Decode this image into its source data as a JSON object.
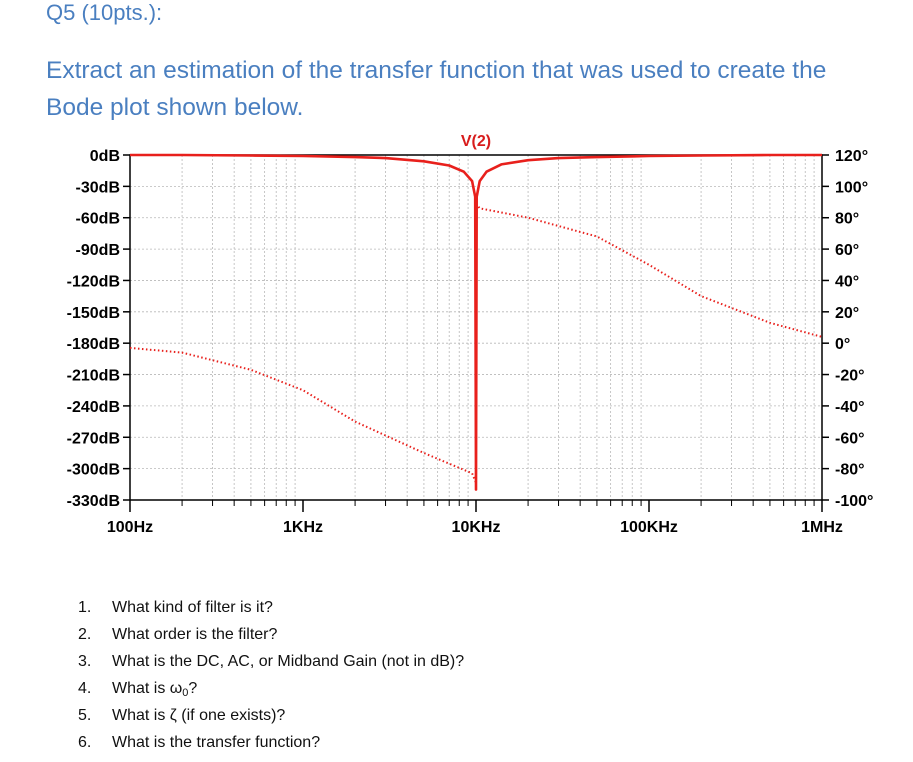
{
  "heading": "Q5 (10pts.):",
  "intro": "Extract an estimation of the transfer function that was used to create the Bode plot shown below.",
  "chart_data": {
    "type": "line",
    "title": "V(2)",
    "x_scale": "log",
    "x_ticks": [
      {
        "value": 100,
        "label": "100Hz"
      },
      {
        "value": 1000,
        "label": "1KHz"
      },
      {
        "value": 10000,
        "label": "10KHz"
      },
      {
        "value": 100000,
        "label": "100KHz"
      },
      {
        "value": 1000000,
        "label": "1MHz"
      }
    ],
    "xlim": [
      100,
      1000000
    ],
    "ylim_left": [
      -330,
      0
    ],
    "yticks_left": [
      "0dB",
      "-30dB",
      "-60dB",
      "-90dB",
      "-120dB",
      "-150dB",
      "-180dB",
      "-210dB",
      "-240dB",
      "-270dB",
      "-300dB",
      "-330dB"
    ],
    "ylim_right": [
      -100,
      120
    ],
    "yticks_right": [
      "120°",
      "100°",
      "80°",
      "60°",
      "40°",
      "20°",
      "0°",
      "-20°",
      "-40°",
      "-60°",
      "-80°",
      "-100°"
    ],
    "grid": true,
    "series": [
      {
        "name": "V(2)",
        "style": "solid",
        "axis": "left",
        "color": "#e8201c",
        "x": [
          100,
          200,
          500,
          1000,
          2000,
          3000,
          5000,
          7000,
          8500,
          9500,
          9900,
          10000,
          10100,
          10500,
          11500,
          14000,
          20000,
          30000,
          50000,
          100000,
          200000,
          500000,
          1000000
        ],
        "y": [
          0,
          0,
          -0.5,
          -1,
          -2,
          -3,
          -6,
          -10,
          -16,
          -25,
          -40,
          -320,
          -40,
          -25,
          -16,
          -9,
          -5,
          -3,
          -2,
          -1,
          -0.5,
          0,
          0
        ]
      },
      {
        "style": "dotted",
        "axis": "right",
        "color": "#e8201c",
        "x": [
          100,
          200,
          500,
          1000,
          2000,
          5000,
          9500,
          9999,
          10001,
          10500,
          20000,
          50000,
          100000,
          200000,
          500000,
          1000000
        ],
        "y": [
          -3,
          -6,
          -17,
          -30,
          -50,
          -70,
          -83,
          -89,
          89,
          86,
          80,
          68,
          50,
          30,
          13,
          4
        ]
      }
    ]
  },
  "questions": [
    {
      "num": "1.",
      "text": "What kind of filter is it?"
    },
    {
      "num": "2.",
      "text": "What order is the filter?"
    },
    {
      "num": "3.",
      "text": "What is the DC, AC, or Midband Gain (not in dB)?"
    },
    {
      "num": "4.",
      "text_before": "What is ",
      "symbol": "ω",
      "subscript": "0",
      "text_after": "?"
    },
    {
      "num": "5.",
      "text": "What is ζ (if one exists)?"
    },
    {
      "num": "6.",
      "text": "What is the transfer function?"
    }
  ]
}
